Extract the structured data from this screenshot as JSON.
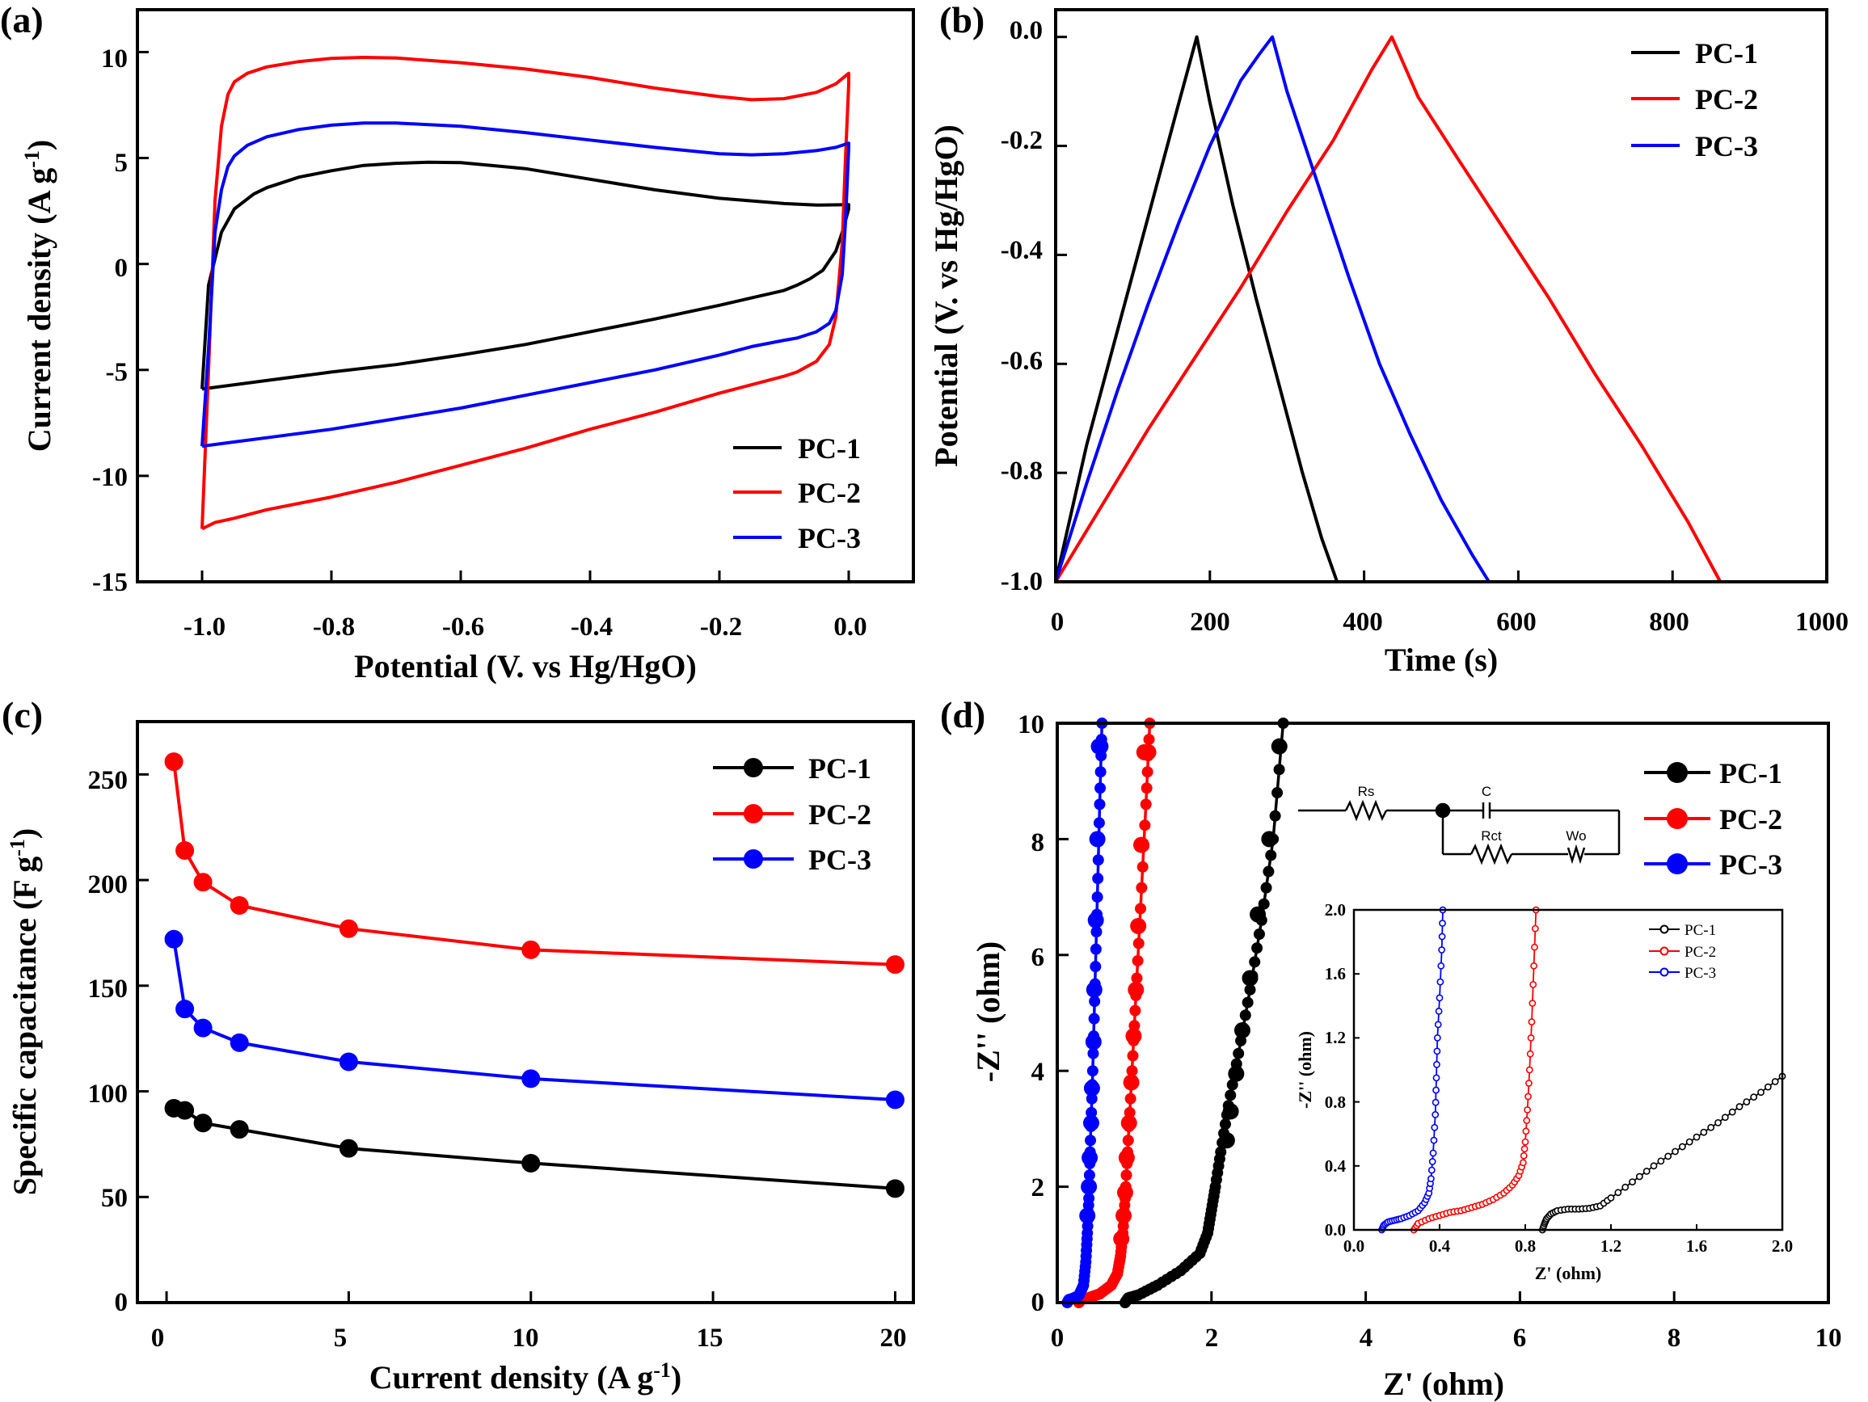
{
  "chart_data": [
    {
      "panel": "(a)",
      "type": "line",
      "title": "",
      "xlabel": "Potential (V. vs Hg/HgO)",
      "ylabel": "Current density (A g",
      "ylabel_sup": "-1",
      "ylabel_end": ")",
      "xlim": [
        -1.1,
        0.1
      ],
      "ylim": [
        -15,
        12
      ],
      "xticks": [
        "-1.0",
        "-0.8",
        "-0.6",
        "-0.4",
        "-0.2",
        "0.0"
      ],
      "yticks": [
        "-15",
        "-10",
        "-5",
        "0",
        "5",
        "10"
      ],
      "legend_position": "bottom-right",
      "series": [
        {
          "name": "PC-1",
          "color": "#000000",
          "upper": {
            "x": [
              -1.0,
              -0.99,
              -0.97,
              -0.95,
              -0.92,
              -0.9,
              -0.85,
              -0.8,
              -0.75,
              -0.7,
              -0.65,
              -0.6,
              -0.5,
              -0.4,
              -0.3,
              -0.2,
              -0.1,
              -0.05,
              0.0
            ],
            "y": [
              -5.9,
              -1.0,
              1.5,
              2.6,
              3.3,
              3.6,
              4.1,
              4.4,
              4.65,
              4.75,
              4.8,
              4.78,
              4.5,
              4.0,
              3.5,
              3.1,
              2.85,
              2.78,
              2.8
            ]
          },
          "lower": {
            "x": [
              0.0,
              -0.01,
              -0.02,
              -0.04,
              -0.06,
              -0.08,
              -0.1,
              -0.15,
              -0.2,
              -0.3,
              -0.4,
              -0.5,
              -0.6,
              -0.7,
              -0.8,
              -0.9,
              -1.0
            ],
            "y": [
              2.6,
              1.5,
              0.6,
              -0.3,
              -0.7,
              -1.0,
              -1.25,
              -1.6,
              -1.95,
              -2.6,
              -3.2,
              -3.8,
              -4.3,
              -4.75,
              -5.1,
              -5.5,
              -5.9
            ]
          }
        },
        {
          "name": "PC-2",
          "color": "#ff0000",
          "upper": {
            "x": [
              -1.0,
              -0.99,
              -0.98,
              -0.97,
              -0.96,
              -0.95,
              -0.93,
              -0.9,
              -0.85,
              -0.8,
              -0.75,
              -0.7,
              -0.6,
              -0.5,
              -0.4,
              -0.3,
              -0.2,
              -0.15,
              -0.1,
              -0.05,
              -0.02,
              0.0
            ],
            "y": [
              -12.5,
              -5.0,
              3.0,
              6.5,
              8.0,
              8.6,
              9.0,
              9.3,
              9.55,
              9.7,
              9.75,
              9.72,
              9.5,
              9.2,
              8.8,
              8.3,
              7.9,
              7.75,
              7.8,
              8.1,
              8.5,
              9.0
            ]
          },
          "lower": {
            "x": [
              0.0,
              -0.005,
              -0.01,
              -0.02,
              -0.03,
              -0.05,
              -0.08,
              -0.1,
              -0.15,
              -0.2,
              -0.3,
              -0.4,
              -0.5,
              -0.6,
              -0.7,
              -0.8,
              -0.9,
              -0.95,
              -0.98,
              -1.0
            ],
            "y": [
              8.5,
              5.0,
              1.0,
              -2.5,
              -3.8,
              -4.6,
              -5.1,
              -5.3,
              -5.7,
              -6.1,
              -7.0,
              -7.8,
              -8.7,
              -9.5,
              -10.3,
              -11.0,
              -11.6,
              -12.0,
              -12.2,
              -12.5
            ]
          }
        },
        {
          "name": "PC-3",
          "color": "#0000ff",
          "upper": {
            "x": [
              -1.0,
              -0.99,
              -0.98,
              -0.97,
              -0.96,
              -0.95,
              -0.93,
              -0.9,
              -0.85,
              -0.8,
              -0.75,
              -0.7,
              -0.6,
              -0.5,
              -0.4,
              -0.3,
              -0.2,
              -0.15,
              -0.1,
              -0.05,
              -0.02,
              0.0
            ],
            "y": [
              -8.6,
              -4.0,
              1.5,
              3.5,
              4.6,
              5.1,
              5.6,
              6.0,
              6.35,
              6.55,
              6.65,
              6.65,
              6.5,
              6.2,
              5.85,
              5.5,
              5.2,
              5.15,
              5.2,
              5.35,
              5.5,
              5.7
            ]
          },
          "lower": {
            "x": [
              0.0,
              -0.005,
              -0.01,
              -0.02,
              -0.03,
              -0.05,
              -0.08,
              -0.1,
              -0.15,
              -0.2,
              -0.3,
              -0.4,
              -0.5,
              -0.6,
              -0.7,
              -0.8,
              -0.9,
              -0.95,
              -1.0
            ],
            "y": [
              5.5,
              2.0,
              -0.5,
              -2.2,
              -2.8,
              -3.2,
              -3.5,
              -3.6,
              -3.9,
              -4.3,
              -5.0,
              -5.6,
              -6.2,
              -6.8,
              -7.3,
              -7.8,
              -8.2,
              -8.4,
              -8.6
            ]
          }
        }
      ]
    },
    {
      "panel": "(b)",
      "type": "line",
      "title": "",
      "xlabel": "Time (s)",
      "ylabel": "Potential (V. vs Hg/HgO)",
      "xlim": [
        0,
        1000
      ],
      "ylim": [
        -1.0,
        0.05
      ],
      "xticks": [
        "0",
        "200",
        "400",
        "600",
        "800",
        "1000"
      ],
      "yticks": [
        "-1.0",
        "-0.8",
        "-0.6",
        "-0.4",
        "-0.2",
        "0.0"
      ],
      "legend_position": "top-right",
      "series": [
        {
          "name": "PC-1",
          "color": "#000000",
          "x": [
            0,
            40,
            80,
            120,
            160,
            183,
            200,
            230,
            260,
            290,
            320,
            345,
            365
          ],
          "y": [
            -1.0,
            -0.75,
            -0.54,
            -0.33,
            -0.12,
            0.0,
            -0.12,
            -0.31,
            -0.48,
            -0.64,
            -0.8,
            -0.92,
            -1.0
          ]
        },
        {
          "name": "PC-2",
          "color": "#ff0000",
          "x": [
            0,
            60,
            120,
            180,
            240,
            300,
            360,
            410,
            436,
            470,
            520,
            580,
            640,
            700,
            760,
            820,
            862
          ],
          "y": [
            -1.0,
            -0.86,
            -0.72,
            -0.59,
            -0.46,
            -0.32,
            -0.19,
            -0.06,
            0.0,
            -0.11,
            -0.22,
            -0.35,
            -0.48,
            -0.62,
            -0.75,
            -0.89,
            -1.0
          ]
        },
        {
          "name": "PC-3",
          "color": "#0000ff",
          "x": [
            0,
            40,
            80,
            120,
            160,
            200,
            240,
            265,
            281,
            300,
            340,
            380,
            420,
            460,
            500,
            540,
            562
          ],
          "y": [
            -1.0,
            -0.82,
            -0.65,
            -0.49,
            -0.34,
            -0.2,
            -0.08,
            -0.03,
            0.0,
            -0.1,
            -0.27,
            -0.44,
            -0.6,
            -0.73,
            -0.85,
            -0.95,
            -1.0
          ]
        }
      ]
    },
    {
      "panel": "(c)",
      "type": "line",
      "title": "",
      "xlabel": "Current density (A g",
      "xlabel_sup": "-1",
      "xlabel_end": ")",
      "ylabel": "Specific capacitance (F g",
      "ylabel_sup": "-1",
      "ylabel_end": ")",
      "xlim": [
        -0.8,
        20.5
      ],
      "ylim": [
        0,
        275
      ],
      "xticks": [
        "0",
        "5",
        "10",
        "15",
        "20"
      ],
      "yticks": [
        "0",
        "50",
        "100",
        "150",
        "200",
        "250"
      ],
      "legend_position": "top-right",
      "x": [
        0.2,
        0.5,
        1,
        2,
        5,
        10,
        20
      ],
      "series": [
        {
          "name": "PC-1",
          "color": "#000000",
          "values": [
            92,
            91,
            85,
            82,
            73,
            66,
            54
          ]
        },
        {
          "name": "PC-2",
          "color": "#ff0000",
          "values": [
            256,
            214,
            199,
            188,
            177,
            167,
            160
          ]
        },
        {
          "name": "PC-3",
          "color": "#0000ff",
          "values": [
            172,
            139,
            130,
            123,
            114,
            106,
            96
          ]
        }
      ]
    },
    {
      "panel": "(d)",
      "type": "scatter",
      "title": "",
      "xlabel": "Z' (ohm)",
      "ylabel": "-Z'' (ohm)",
      "xlim": [
        0,
        10
      ],
      "ylim": [
        0,
        10
      ],
      "xticks": [
        "0",
        "2",
        "4",
        "6",
        "8",
        "10"
      ],
      "yticks": [
        "0",
        "2",
        "4",
        "6",
        "8",
        "10"
      ],
      "legend_position": "top-right",
      "circuit_labels": {
        "rs": "Rs",
        "c": "C",
        "rct": "Rct",
        "wo": "Wo"
      },
      "series": [
        {
          "name": "PC-1",
          "color": "#000000",
          "path": {
            "x": [
              0.88,
              0.92,
              1.05,
              1.3,
              1.6,
              1.85,
              1.95,
              2.0,
              2.05,
              2.12,
              2.22,
              2.35,
              2.5,
              2.65,
              2.8,
              2.93
            ],
            "y": [
              0.0,
              0.08,
              0.13,
              0.3,
              0.55,
              0.85,
              1.2,
              1.6,
              2.0,
              2.6,
              3.4,
              4.3,
              5.4,
              6.6,
              8.0,
              10.0
            ]
          },
          "big_markers": {
            "x": [
              2.2,
              2.25,
              2.32,
              2.4,
              2.5,
              2.6,
              2.75,
              2.88
            ],
            "y": [
              2.8,
              3.3,
              3.95,
              4.7,
              5.6,
              6.7,
              8.0,
              9.6
            ]
          }
        },
        {
          "name": "PC-2",
          "color": "#ff0000",
          "path": {
            "x": [
              0.28,
              0.3,
              0.4,
              0.55,
              0.7,
              0.78,
              0.82,
              0.85,
              0.88,
              0.92,
              0.97,
              1.02,
              1.08,
              1.15,
              1.2
            ],
            "y": [
              0.0,
              0.05,
              0.08,
              0.15,
              0.3,
              0.5,
              0.8,
              1.2,
              1.8,
              2.8,
              4.0,
              5.3,
              6.8,
              8.6,
              10.0
            ]
          },
          "big_markers": {
            "x": [
              0.83,
              0.86,
              0.88,
              0.9,
              0.93,
              0.96,
              0.99,
              1.02,
              1.05,
              1.09,
              1.13,
              1.18
            ],
            "y": [
              1.1,
              1.5,
              1.9,
              2.5,
              3.1,
              3.8,
              4.6,
              5.4,
              6.5,
              7.9,
              9.5,
              9.5
            ]
          }
        },
        {
          "name": "PC-3",
          "color": "#0000ff",
          "path": {
            "x": [
              0.13,
              0.15,
              0.2,
              0.28,
              0.34,
              0.37,
              0.39,
              0.41,
              0.43,
              0.46,
              0.49,
              0.52,
              0.55,
              0.58
            ],
            "y": [
              0.0,
              0.05,
              0.07,
              0.12,
              0.3,
              0.7,
              1.2,
              1.8,
              2.8,
              4.0,
              5.5,
              7.0,
              8.6,
              10.0
            ]
          },
          "big_markers": {
            "x": [
              0.39,
              0.41,
              0.42,
              0.44,
              0.45,
              0.47,
              0.48,
              0.5,
              0.52,
              0.54,
              0.56
            ],
            "y": [
              1.5,
              2.0,
              2.5,
              3.1,
              3.7,
              4.5,
              5.4,
              6.6,
              8.0,
              9.6,
              9.6
            ]
          }
        }
      ],
      "inset": {
        "xlabel": "Z' (ohm)",
        "ylabel": "-Z'' (ohm)",
        "xlim": [
          0,
          2.0
        ],
        "ylim": [
          0,
          2.0
        ],
        "xticks": [
          "0.0",
          "0.4",
          "0.8",
          "1.2",
          "1.6",
          "2.0"
        ],
        "yticks": [
          "0.0",
          "0.4",
          "0.8",
          "1.2",
          "1.6",
          "2.0"
        ],
        "legend_position": "top-right",
        "series": [
          {
            "name": "PC-1",
            "color": "#000000",
            "x": [
              0.88,
              0.89,
              0.9,
              0.92,
              0.95,
              1.0,
              1.05,
              1.1,
              1.15,
              1.2,
              1.3,
              1.4,
              1.5,
              1.6,
              1.7,
              1.8,
              1.9,
              2.0
            ],
            "y": [
              0.0,
              0.04,
              0.07,
              0.1,
              0.12,
              0.13,
              0.13,
              0.135,
              0.15,
              0.2,
              0.3,
              0.4,
              0.49,
              0.58,
              0.67,
              0.77,
              0.86,
              0.96
            ]
          },
          {
            "name": "PC-2",
            "color": "#ff0000",
            "x": [
              0.28,
              0.3,
              0.35,
              0.4,
              0.45,
              0.5,
              0.55,
              0.6,
              0.65,
              0.7,
              0.74,
              0.77,
              0.79,
              0.8,
              0.81,
              0.82,
              0.83,
              0.84,
              0.85
            ],
            "y": [
              0.0,
              0.04,
              0.07,
              0.09,
              0.11,
              0.12,
              0.14,
              0.16,
              0.19,
              0.23,
              0.28,
              0.34,
              0.42,
              0.55,
              0.75,
              1.0,
              1.3,
              1.65,
              2.0
            ]
          },
          {
            "name": "PC-3",
            "color": "#0000ff",
            "x": [
              0.13,
              0.14,
              0.16,
              0.19,
              0.22,
              0.26,
              0.3,
              0.33,
              0.35,
              0.36,
              0.37,
              0.38,
              0.385,
              0.39,
              0.4,
              0.41,
              0.415
            ],
            "y": [
              0.0,
              0.03,
              0.05,
              0.06,
              0.07,
              0.09,
              0.12,
              0.17,
              0.23,
              0.32,
              0.48,
              0.72,
              0.95,
              1.2,
              1.45,
              1.75,
              2.0
            ]
          }
        ]
      }
    }
  ]
}
